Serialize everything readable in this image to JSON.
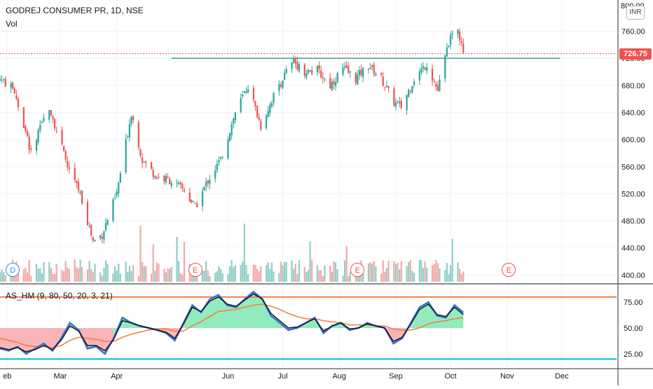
{
  "header": {
    "title": "GODREJ CONSUMER PR, 1D, NSE",
    "volume_label": "Vol",
    "currency": "INR",
    "top_cut_label": "800.00"
  },
  "colors": {
    "up": "#26a69a",
    "down": "#ef5350",
    "up_volume": "#8fcfc8",
    "down_volume": "#f4a9a8",
    "price_line": "#ef5350",
    "resistance": "#1b8a7f",
    "osc_line": "#131722",
    "osc_fast": "#3b6fd0",
    "osc_slow": "#f57c3a",
    "osc_upper_band": "#f57c3a",
    "osc_lower_band": "#00bcd4",
    "osc_fill_bull": "#7ee8b0",
    "osc_fill_bear": "#f7a7a9",
    "grid": "#f0f3fa"
  },
  "events": [
    {
      "label": "D",
      "kind": "dividend",
      "date": "2020-02-04"
    },
    {
      "label": "E",
      "kind": "earnings",
      "date": "2020-05-14"
    },
    {
      "label": "E",
      "kind": "earnings",
      "date": "2020-08-11"
    },
    {
      "label": "E",
      "kind": "earnings",
      "date": "2020-11-02"
    }
  ],
  "chart_data": [
    {
      "type": "candlestick",
      "symbol": "GODREJ CONSUMER PR",
      "interval": "1D",
      "exchange": "NSE",
      "x_axis": {
        "type": "date",
        "range": [
          "2020-01-28",
          "2020-12-31"
        ],
        "tick_labels": [
          {
            "label": "eb",
            "date": "2020-02-01"
          },
          {
            "label": "Mar",
            "date": "2020-03-01"
          },
          {
            "label": "Apr",
            "date": "2020-04-01"
          },
          {
            "label": "Jun",
            "date": "2020-06-01"
          },
          {
            "label": "Jul",
            "date": "2020-07-01"
          },
          {
            "label": "Aug",
            "date": "2020-08-01"
          },
          {
            "label": "Sep",
            "date": "2020-09-01"
          },
          {
            "label": "Oct",
            "date": "2020-10-01"
          },
          {
            "label": "Nov",
            "date": "2020-11-01"
          },
          {
            "label": "Dec",
            "date": "2020-12-01"
          }
        ]
      },
      "y_axis": {
        "range": [
          388,
          806
        ],
        "ticks": [
          "400.00",
          "440.00",
          "480.00",
          "520.00",
          "560.00",
          "600.00",
          "640.00",
          "680.00",
          "720.00",
          "760.00"
        ]
      },
      "last_price": 726.75,
      "last_price_label": "726.75",
      "resistance_line": {
        "value": 720,
        "from": "2020-05-01",
        "to": "2020-11-30"
      },
      "anchors": [
        {
          "date": "2020-01-28",
          "close": 690
        },
        {
          "date": "2020-02-05",
          "close": 672
        },
        {
          "date": "2020-02-14",
          "close": 580
        },
        {
          "date": "2020-02-24",
          "close": 650
        },
        {
          "date": "2020-03-05",
          "close": 560
        },
        {
          "date": "2020-03-12",
          "close": 520
        },
        {
          "date": "2020-03-19",
          "close": 450
        },
        {
          "date": "2020-03-24",
          "close": 460
        },
        {
          "date": "2020-04-01",
          "close": 520
        },
        {
          "date": "2020-04-09",
          "close": 640
        },
        {
          "date": "2020-04-15",
          "close": 570
        },
        {
          "date": "2020-04-23",
          "close": 545
        },
        {
          "date": "2020-04-30",
          "close": 540
        },
        {
          "date": "2020-05-08",
          "close": 525
        },
        {
          "date": "2020-05-14",
          "close": 500
        },
        {
          "date": "2020-05-21",
          "close": 540
        },
        {
          "date": "2020-05-28",
          "close": 570
        },
        {
          "date": "2020-06-05",
          "close": 640
        },
        {
          "date": "2020-06-12",
          "close": 680
        },
        {
          "date": "2020-06-19",
          "close": 620
        },
        {
          "date": "2020-06-26",
          "close": 665
        },
        {
          "date": "2020-07-03",
          "close": 700
        },
        {
          "date": "2020-07-07",
          "close": 715
        },
        {
          "date": "2020-07-13",
          "close": 700
        },
        {
          "date": "2020-07-20",
          "close": 702
        },
        {
          "date": "2020-07-27",
          "close": 680
        },
        {
          "date": "2020-08-03",
          "close": 705
        },
        {
          "date": "2020-08-10",
          "close": 690
        },
        {
          "date": "2020-08-17",
          "close": 710
        },
        {
          "date": "2020-08-24",
          "close": 690
        },
        {
          "date": "2020-08-31",
          "close": 655
        },
        {
          "date": "2020-09-04",
          "close": 648
        },
        {
          "date": "2020-09-11",
          "close": 690
        },
        {
          "date": "2020-09-18",
          "close": 712
        },
        {
          "date": "2020-09-24",
          "close": 672
        },
        {
          "date": "2020-09-30",
          "close": 745
        },
        {
          "date": "2020-10-05",
          "close": 760
        },
        {
          "date": "2020-10-08",
          "close": 727
        }
      ]
    },
    {
      "type": "line",
      "title": "AS_HM (9, 80, 50, 20, 3, 21)",
      "y_axis": {
        "range": [
          12,
          92
        ],
        "ticks": [
          "25.00",
          "50.00",
          "75.00"
        ]
      },
      "reference_levels": [
        80,
        50,
        20
      ],
      "series": [
        {
          "key": "fast",
          "values": [
            30,
            28,
            32,
            25,
            30,
            35,
            28,
            40,
            55,
            48,
            30,
            32,
            25,
            40,
            60,
            55,
            52,
            50,
            48,
            45,
            38,
            55,
            72,
            65,
            78,
            82,
            72,
            70,
            78,
            85,
            78,
            62,
            55,
            48,
            50,
            55,
            60,
            45,
            52,
            55,
            48,
            50,
            55,
            52,
            50,
            35,
            40,
            55,
            70,
            75,
            62,
            60,
            72,
            65
          ]
        },
        {
          "key": "signal",
          "values": [
            31,
            29,
            31,
            27,
            29,
            33,
            29,
            38,
            52,
            47,
            33,
            33,
            28,
            39,
            57,
            55,
            52,
            50,
            48,
            46,
            40,
            54,
            70,
            66,
            76,
            80,
            73,
            71,
            77,
            83,
            78,
            64,
            57,
            50,
            51,
            55,
            59,
            47,
            52,
            55,
            49,
            50,
            54,
            52,
            50,
            37,
            41,
            54,
            68,
            73,
            63,
            61,
            70,
            63
          ]
        },
        {
          "key": "slow",
          "values": [
            40,
            38,
            36,
            33,
            32,
            32,
            31,
            33,
            38,
            41,
            40,
            39,
            37,
            37,
            41,
            44,
            46,
            48,
            49,
            49,
            47,
            47,
            52,
            56,
            61,
            66,
            67,
            68,
            70,
            72,
            73,
            71,
            68,
            64,
            61,
            59,
            59,
            57,
            56,
            55,
            53,
            53,
            53,
            52,
            52,
            49,
            48,
            48,
            50,
            54,
            56,
            57,
            59,
            60
          ]
        }
      ]
    }
  ]
}
